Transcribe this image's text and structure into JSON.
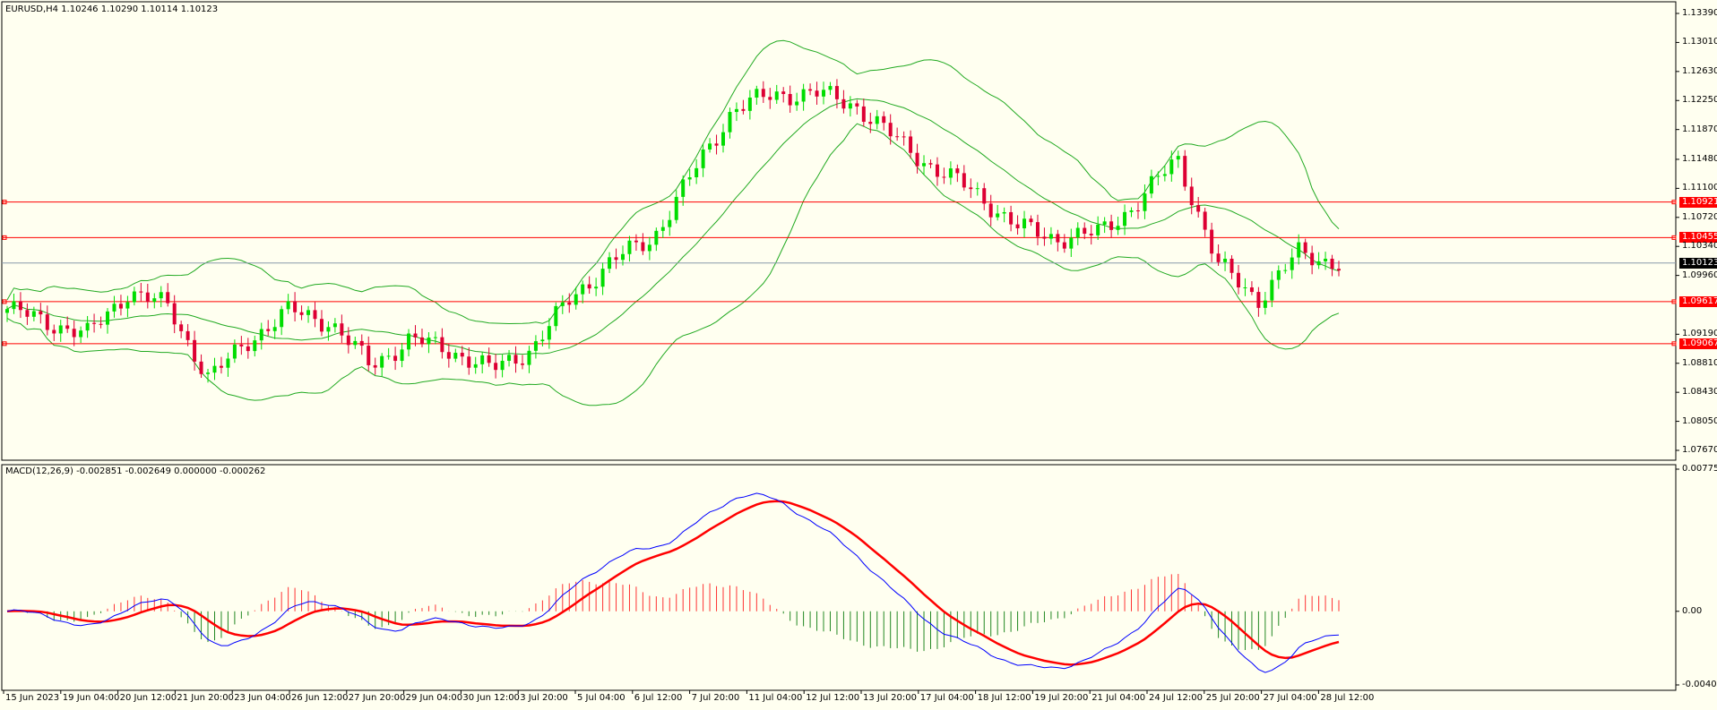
{
  "main_header": "EURUSD,H4  1.10246 1.10290 1.10114 1.10123",
  "macd_header": "MACD(12,26,9) -0.002851 -0.002649 0.000000 -0.000262",
  "price_axis": {
    "ticks": [
      "1.13390",
      "1.13010",
      "1.12630",
      "1.12250",
      "1.11870",
      "1.11480",
      "1.11100",
      "1.10720",
      "1.10340",
      "1.09960",
      "1.09190",
      "1.08810",
      "1.08430",
      "1.08050",
      "1.07670"
    ],
    "min": 1.0767,
    "max": 1.1339
  },
  "horizontal_levels": [
    {
      "label": "1.10921",
      "value": 1.10921,
      "color": "#ff0000"
    },
    {
      "label": "1.10455",
      "value": 1.10455,
      "color": "#ff0000"
    },
    {
      "label": "1.09617",
      "value": 1.09617,
      "color": "#ff0000"
    },
    {
      "label": "1.09067",
      "value": 1.09067,
      "color": "#ff0000"
    }
  ],
  "current_price": {
    "label": "1.10123",
    "value": 1.10123,
    "color": "#000000"
  },
  "macd_axis": {
    "ticks": [
      "0.007755",
      "0.00",
      "-0.004017"
    ],
    "max": 0.007755,
    "min": -0.004017
  },
  "time_axis": [
    "15 Jun 2023",
    "19 Jun 04:00",
    "20 Jun 12:00",
    "21 Jun 20:00",
    "23 Jun 04:00",
    "26 Jun 12:00",
    "27 Jun 20:00",
    "29 Jun 04:00",
    "30 Jun 12:00",
    "3 Jul 20:00",
    "5 Jul 04:00",
    "6 Jul 12:00",
    "7 Jul 20:00",
    "11 Jul 04:00",
    "12 Jul 12:00",
    "13 Jul 20:00",
    "17 Jul 04:00",
    "18 Jul 12:00",
    "19 Jul 20:00",
    "21 Jul 04:00",
    "24 Jul 12:00",
    "25 Jul 20:00",
    "27 Jul 04:00",
    "28 Jul 12:00"
  ],
  "colors": {
    "bull": "#00dd00",
    "bear": "#dd0033",
    "bands": "#22aa22",
    "macd_line": "#0000ff",
    "signal_line": "#ff0000",
    "hist_pos": "#ff3333",
    "hist_neg": "#228822"
  },
  "chart_data": {
    "type": "candlestick",
    "symbol": "EURUSD",
    "timeframe": "H4",
    "key_closes": [
      1.0952,
      1.0935,
      1.0918,
      1.0975,
      1.0955,
      1.086,
      1.0912,
      1.095,
      1.0935,
      1.0878,
      1.0912,
      1.0898,
      1.0872,
      1.09,
      1.0968,
      1.1015,
      1.1045,
      1.113,
      1.1215,
      1.1232,
      1.1235,
      1.122,
      1.1175,
      1.1135,
      1.1105,
      1.106,
      1.1045,
      1.105,
      1.109,
      1.115,
      1.101,
      1.0965,
      1.1025,
      1.1012
    ],
    "macd_range": [
      -0.004017,
      0.007755
    ]
  }
}
